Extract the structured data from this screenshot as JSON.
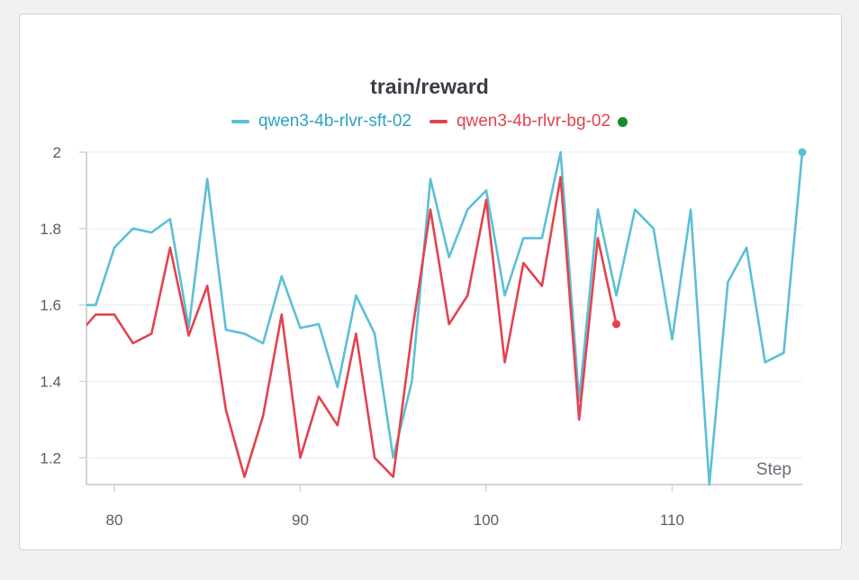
{
  "chart_data": {
    "type": "line",
    "title": "train/reward",
    "xlabel": "Step",
    "ylabel": "",
    "xlim": [
      78.5,
      117
    ],
    "ylim": [
      1.13,
      2.0
    ],
    "xticks": [
      80,
      90,
      100,
      110
    ],
    "yticks": [
      1.2,
      1.4,
      1.6,
      1.8,
      2
    ],
    "grid": true,
    "legend_position": "top-center",
    "series": [
      {
        "name": "qwen3-4b-rlvr-sft-02",
        "color": "#5bc0d6",
        "x": [
          78,
          79,
          80,
          81,
          82,
          83,
          84,
          85,
          86,
          87,
          88,
          89,
          90,
          91,
          92,
          93,
          94,
          95,
          96,
          97,
          98,
          99,
          100,
          101,
          102,
          103,
          104,
          105,
          106,
          107,
          108,
          109,
          110,
          111,
          112,
          113,
          114,
          115,
          116,
          117
        ],
        "y": [
          1.6,
          1.6,
          1.75,
          1.8,
          1.79,
          1.825,
          1.54,
          1.93,
          1.535,
          1.525,
          1.5,
          1.675,
          1.54,
          1.55,
          1.385,
          1.625,
          1.525,
          1.2,
          1.4,
          1.93,
          1.725,
          1.85,
          1.9,
          1.625,
          1.775,
          1.775,
          2.0,
          1.35,
          1.85,
          1.625,
          1.85,
          1.8,
          1.51,
          1.85,
          1.13,
          1.66,
          1.75,
          1.45,
          1.475,
          2.0
        ]
      },
      {
        "name": "qwen3-4b-rlvr-bg-02",
        "color": "#e3424f",
        "x": [
          78,
          79,
          80,
          81,
          82,
          83,
          84,
          85,
          86,
          87,
          88,
          89,
          90,
          91,
          92,
          93,
          94,
          95,
          96,
          97,
          98,
          99,
          100,
          101,
          102,
          103,
          104,
          105,
          106,
          107
        ],
        "y": [
          1.52,
          1.575,
          1.575,
          1.5,
          1.525,
          1.75,
          1.52,
          1.65,
          1.325,
          1.15,
          1.31,
          1.575,
          1.2,
          1.36,
          1.285,
          1.525,
          1.2,
          1.15,
          1.525,
          1.85,
          1.55,
          1.625,
          1.875,
          1.45,
          1.71,
          1.65,
          1.935,
          1.3,
          1.775,
          1.55
        ]
      }
    ]
  },
  "legend": {
    "status_dot_color": "#1a8a2f"
  }
}
